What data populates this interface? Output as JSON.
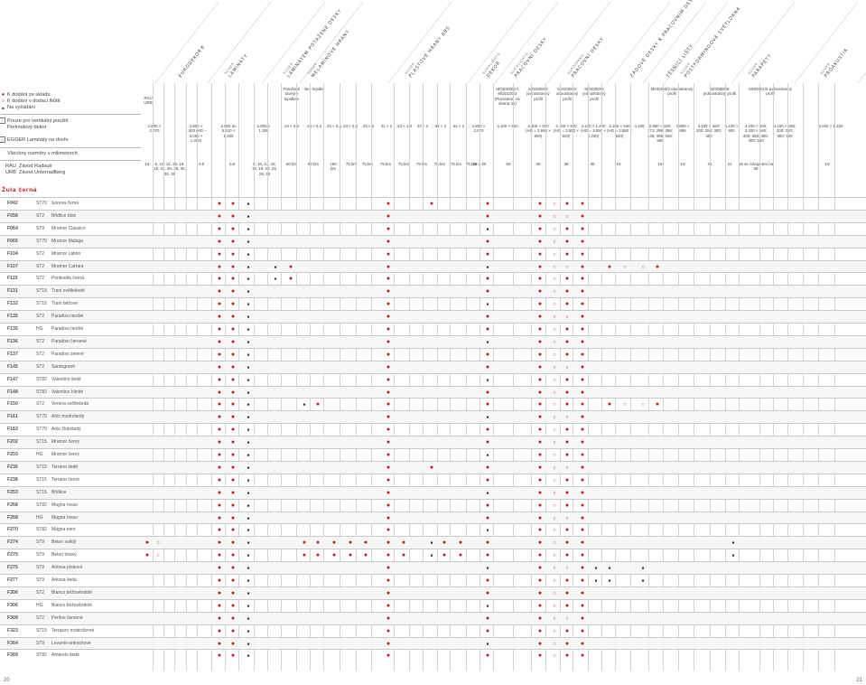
{
  "header": {
    "columns": [
      {
        "label": "EURODEKOR®",
        "sub": ""
      },
      {
        "label": "LAMINÁTY",
        "sub": "EGGER"
      },
      {
        "label": "LAMINÁTEM POTAŽENÉ DESKY",
        "sub": "EGGER"
      },
      {
        "label": "MELAMINOVÉ HRANY",
        "sub": "EGGER"
      },
      {
        "label": "PLASTOVÉ HRANY ABS",
        "sub": "EGGER"
      },
      {
        "label": "DEKOR",
        "sub": "EUROLIGHT®"
      },
      {
        "label": "PRACOVNÍ DESKY",
        "sub": "EUROLIGHT®"
      },
      {
        "label": "PRACOVNÍ DESKY",
        "sub": "EUROSPAN®"
      },
      {
        "label": "ZÁDOVÉ DESKY K PRACOVNÍM DESKÁM",
        "sub": ""
      },
      {
        "label": "TĚSNICÍ LIŠTY",
        "sub": ""
      },
      {
        "label": "POSTFORMINGOVÁ SVĚTLOKNA",
        "sub": "EGGER"
      },
      {
        "label": "PARAPETY",
        "sub": "EGGER"
      },
      {
        "label": "PROAKUSTIK",
        "sub": "EGGER"
      }
    ]
  },
  "legend": {
    "stock": "K dodání ze skladu",
    "delivery": "K dodání v dodací lhůtě",
    "on_request": "Na vyžádání",
    "vertical_only": "Pouze pro vertikální použití",
    "pearl": "Perlmutový dekor",
    "laminate_doors": "EGGER Lamináty na dveře",
    "sizes": "Všechny rozměry v milimetrech",
    "rau_code": "RAU",
    "rau_name": "Závod Radauti",
    "urb_code": "URB",
    "urb_name": "Závod Unterradlberg"
  },
  "header_row1": {
    "plant": "RAU URB",
    "c_laminat_pot": "Potažené tavným lepidlem",
    "c_bez": "Bez lepidla",
    "c_mod1": "MOD300/3 A MOD100/2 (Provedení viz strana 31)",
    "c_mod2": "MOD300/3 jednostranný profil",
    "c_mod3": "MOD300/3 oboustranný profil",
    "c_mod4": "MOD300/3 jednostranný profil",
    "c_mod5": "MOD300/3 oboustranný profil",
    "c_mod6": "MOD800/6 jednostranný profil",
    "c_mod7": "MOD801/6 jednostranný profil"
  },
  "header_row2": {
    "a": "2.800 × 2.070",
    "b": "2.800 × 1.300 (HG – 3.050 × 1.300)",
    "c": "2.000 do 5.610 × 1.300",
    "d": "2.800 × 1.300",
    "e": "24 × 0,3",
    "f": "24 × 0,3",
    "g": "22 × 0,4",
    "h": "23 × 0,8",
    "i": "23 × 2",
    "j": "31 × 2",
    "k": "43 × 1,3",
    "l": "43 × 2",
    "m": "54 × 2",
    "n": "64 × 2",
    "o": "2.800 × 2.070",
    "p": "4.100 × 600",
    "q": "4.100 × 600 (HG = 3.650 × 600)",
    "r": "4.100 × 920 (HG = 3.650 × 920)",
    "s": "4.100 × 1.200 (HG = 3.650 × 1.200)",
    "t": "4.100 × 640 (HG = 3.650 × 640)",
    "u": "4.100",
    "v": "2.800 × 160; 271; 296; 396; 446; 496; 546; 596",
    "w": "2.800 × 896",
    "x": "4.100 × 160; 200; 250; 300; 400",
    "y": "4.100 × 500",
    "z": "4.100 × 500; 3.200 × 160; 200; 250; 300; 400; 500",
    "aa": "4.100 × 160; 200; 250; 300; 400",
    "ab": "3.020 × 1.220"
  },
  "header_row3": {
    "a": "18",
    "b": "8, 10, 12, 16, 18, 19, 22, 25, 28, 30, 35, 38",
    "c": "0,8",
    "d": "0,6",
    "e": "8, 10, 12, 16, 18, 19, 22, 25, 28, 38",
    "f": "50 bm",
    "g": "50 bm",
    "h": "150 bm",
    "i": "75 bm",
    "j": "75 bm",
    "k": "75 bm",
    "l": "75 bm",
    "m": "75 bm",
    "n": "75 bm",
    "o": "75 bm",
    "p": "75 bm",
    "q": "38 a 50",
    "r": "60",
    "s": "38",
    "t": "38",
    "u": "38",
    "v": "15",
    "w": "19",
    "x": "19",
    "y": "22",
    "z": "22",
    "aa": "19 se zdvojením na 38",
    "ab": "19"
  },
  "section_title": "Žula černá",
  "rows": [
    {
      "code": "F042",
      "st": "ST70",
      "name": "Sonora černá"
    },
    {
      "code": "F058",
      "st": "ST2",
      "name": "Břidlice blok"
    },
    {
      "code": "F064",
      "st": "ST9",
      "name": "Mramor Classico"
    },
    {
      "code": "F065",
      "st": "ST70",
      "name": "Mramor Malaga"
    },
    {
      "code": "F104",
      "st": "ST2",
      "name": "Mramor Latino"
    },
    {
      "code": "F107",
      "st": "ST2",
      "name": "Mramor Carrara"
    },
    {
      "code": "F115",
      "st": "ST2",
      "name": "Pontinella černá"
    },
    {
      "code": "F131",
      "st": "ST15",
      "name": "Traní světlešedé"
    },
    {
      "code": "F132",
      "st": "ST15",
      "name": "Traní béžové"
    },
    {
      "code": "F135",
      "st": "ST2",
      "name": "Paradiso modré"
    },
    {
      "code": "F135",
      "st": "HG",
      "name": "Paradiso modré"
    },
    {
      "code": "F136",
      "st": "ST2",
      "name": "Paradiso červené"
    },
    {
      "code": "F137",
      "st": "ST2",
      "name": "Paradiso zelené"
    },
    {
      "code": "F145",
      "st": "ST2",
      "name": "Sardogranit"
    },
    {
      "code": "F147",
      "st": "ST82",
      "name": "Valentino šedé"
    },
    {
      "code": "F148",
      "st": "ST82",
      "name": "Valentino hliníté"
    },
    {
      "code": "F150",
      "st": "ST2",
      "name": "Verona světlešedá"
    },
    {
      "code": "F161",
      "st": "ST70",
      "name": "Artic modrošedý"
    },
    {
      "code": "F163",
      "st": "ST70",
      "name": "Artic žlutošedý"
    },
    {
      "code": "F202",
      "st": "ST15",
      "name": "Mramor černý"
    },
    {
      "code": "F203",
      "st": "HG",
      "name": "Mramor černý"
    },
    {
      "code": "F236",
      "st": "ST15",
      "name": "Terrano šedé"
    },
    {
      "code": "F238",
      "st": "ST15",
      "name": "Terrano černé"
    },
    {
      "code": "F253",
      "st": "ST15",
      "name": "Břidlice"
    },
    {
      "code": "F268",
      "st": "ST82",
      "name": "Magna rosso"
    },
    {
      "code": "F268",
      "st": "HG",
      "name": "Magna rosso"
    },
    {
      "code": "F270",
      "st": "ST82",
      "name": "Magna nero"
    },
    {
      "code": "F274",
      "st": "ST9",
      "name": "Beton světlý"
    },
    {
      "code": "F275",
      "st": "ST9",
      "name": "Beton tmavý"
    },
    {
      "code": "F276",
      "st": "ST9",
      "name": "Arkosa písková"
    },
    {
      "code": "F277",
      "st": "ST9",
      "name": "Arkosa šedá"
    },
    {
      "code": "F306",
      "st": "ST2",
      "name": "Bianco béžověodolé"
    },
    {
      "code": "F306",
      "st": "HG",
      "name": "Bianco béžověodolé"
    },
    {
      "code": "F309",
      "st": "ST2",
      "name": "Perlino červené"
    },
    {
      "code": "F323",
      "st": "ST15",
      "name": "Terrazzo modročerné"
    },
    {
      "code": "F364",
      "st": "ST9",
      "name": "Levanto antracitové"
    },
    {
      "code": "F369",
      "st": "ST82",
      "name": "Amarelo šedé"
    }
  ],
  "symbols": {
    "dot": "●",
    "ring": "○",
    "square": "■"
  },
  "page_left": "20",
  "page_right": "21",
  "colors": {
    "accent": "#c41a1a",
    "grid": "#c9c9c9"
  }
}
